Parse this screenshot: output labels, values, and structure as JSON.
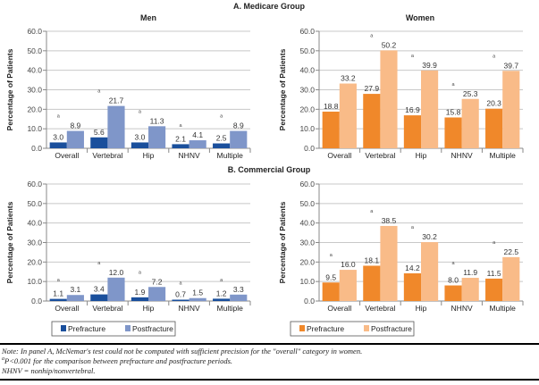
{
  "colors": {
    "men_pre": "#1a4f9c",
    "men_post": "#7f96c9",
    "women_pre": "#f0882a",
    "women_post": "#f9bb88",
    "grid": "#c8c8c8",
    "axis": "#888888"
  },
  "chart_data": [
    {
      "type": "bar",
      "group": "A. Medicare Group",
      "title": "Men",
      "ylabel": "Percentage of Patients",
      "ylim": [
        0,
        60
      ],
      "yticks": [
        "0.0",
        "10.0",
        "20.0",
        "30.0",
        "40.0",
        "50.0",
        "60.0"
      ],
      "grid": true,
      "categories": [
        "Overall",
        "Vertebral",
        "Hip",
        "NHNV",
        "Multiple"
      ],
      "series": [
        {
          "name": "Prefracture",
          "values": [
            3.0,
            5.6,
            3.0,
            2.1,
            2.5
          ]
        },
        {
          "name": "Postfracture",
          "values": [
            8.9,
            21.7,
            11.3,
            4.1,
            8.9
          ]
        }
      ],
      "significance": [
        true,
        true,
        true,
        true,
        true
      ],
      "marker": "a"
    },
    {
      "type": "bar",
      "group": "A. Medicare Group",
      "title": "Women",
      "ylabel": "Percentage of Patients",
      "ylim": [
        0,
        60
      ],
      "yticks": [
        "0.0",
        "10.0",
        "20.0",
        "30.0",
        "40.0",
        "50.0",
        "60.0"
      ],
      "grid": true,
      "categories": [
        "Overall",
        "Vertebral",
        "Hip",
        "NHNV",
        "Multiple"
      ],
      "series": [
        {
          "name": "Prefracture",
          "values": [
            18.8,
            27.9,
            16.9,
            15.8,
            20.3
          ]
        },
        {
          "name": "Postfracture",
          "values": [
            33.2,
            50.2,
            39.9,
            25.3,
            39.7
          ]
        }
      ],
      "significance": [
        false,
        true,
        true,
        true,
        true
      ],
      "marker": "a"
    },
    {
      "type": "bar",
      "group": "B. Commercial Group",
      "title": "",
      "ylabel": "Percentage of Patients",
      "ylim": [
        0,
        60
      ],
      "yticks": [
        "0.0",
        "10.0",
        "20.0",
        "30.0",
        "40.0",
        "50.0",
        "60.0"
      ],
      "grid": true,
      "categories": [
        "Overall",
        "Vertebral",
        "Hip",
        "NHNV",
        "Multiple"
      ],
      "series": [
        {
          "name": "Prefracture",
          "values": [
            1.1,
            3.4,
            1.9,
            0.7,
            1.2
          ]
        },
        {
          "name": "Postfracture",
          "values": [
            3.1,
            12.0,
            7.2,
            1.5,
            3.3
          ]
        }
      ],
      "significance": [
        true,
        true,
        true,
        true,
        true
      ],
      "marker": "a",
      "legend": "bottom"
    },
    {
      "type": "bar",
      "group": "B. Commercial Group",
      "title": "",
      "ylabel": "Percentage of Patients",
      "ylim": [
        0,
        60
      ],
      "yticks": [
        "0.0",
        "10.0",
        "20.0",
        "30.0",
        "40.0",
        "50.0",
        "60.0"
      ],
      "grid": true,
      "categories": [
        "Overall",
        "Vertebral",
        "Hip",
        "NHNV",
        "Multiple"
      ],
      "series": [
        {
          "name": "Prefracture",
          "values": [
            9.5,
            18.1,
            14.2,
            8.0,
            11.5
          ]
        },
        {
          "name": "Postfracture",
          "values": [
            16.0,
            38.5,
            30.2,
            11.9,
            22.5
          ]
        }
      ],
      "significance": [
        true,
        true,
        true,
        true,
        true
      ],
      "marker": "a",
      "legend": "bottom"
    }
  ],
  "notes": {
    "line1": "Note: In panel A, McNemar's test could not be computed with sufficient precision for the \"overall\" category in women.",
    "line2": "P<0.001 for the comparison between prefracture and postfracture periods.",
    "line2_marker": "a",
    "line3": "NHNV = nonhip/nonvertebral."
  }
}
